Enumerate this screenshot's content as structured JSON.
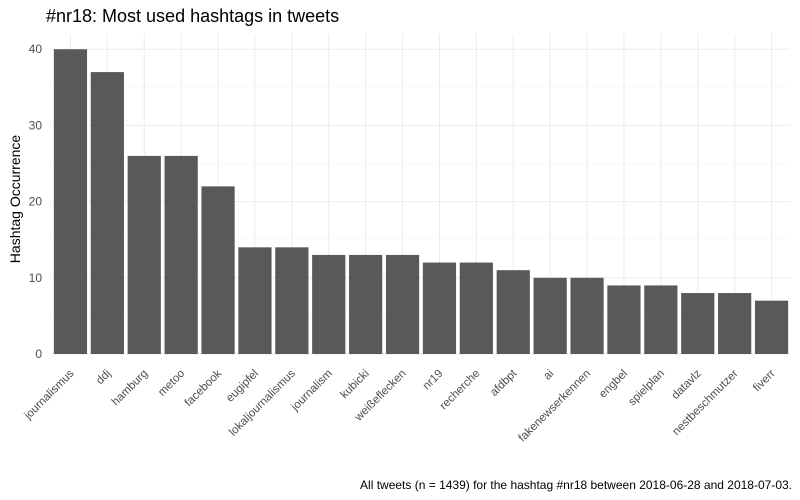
{
  "chart_data": {
    "type": "bar",
    "title": "#nr18: Most used hashtags in tweets",
    "xlabel": "",
    "ylabel": "Hashtag Occurrence",
    "caption": "All tweets (n = 1439) for the hashtag #nr18 between 2018-06-28 and 2018-07-03.",
    "categories": [
      "journalismus",
      "ddj",
      "hamburg",
      "metoo",
      "facebook",
      "eugipfel",
      "lokaljournalismus",
      "journalism",
      "kubicki",
      "weißeflecken",
      "nr19",
      "recherche",
      "afdbpt",
      "ai",
      "fakenewserkennen",
      "engbel",
      "spielplan",
      "datavlz",
      "nestbeschmutzer",
      "fiverr"
    ],
    "values": [
      40,
      37,
      26,
      26,
      22,
      14,
      14,
      13,
      13,
      13,
      12,
      12,
      11,
      10,
      10,
      9,
      9,
      8,
      8,
      7
    ],
    "ylim": [
      0,
      42
    ],
    "yticks": [
      0,
      10,
      20,
      30,
      40
    ],
    "grid": true,
    "bar_color": "#595959"
  }
}
